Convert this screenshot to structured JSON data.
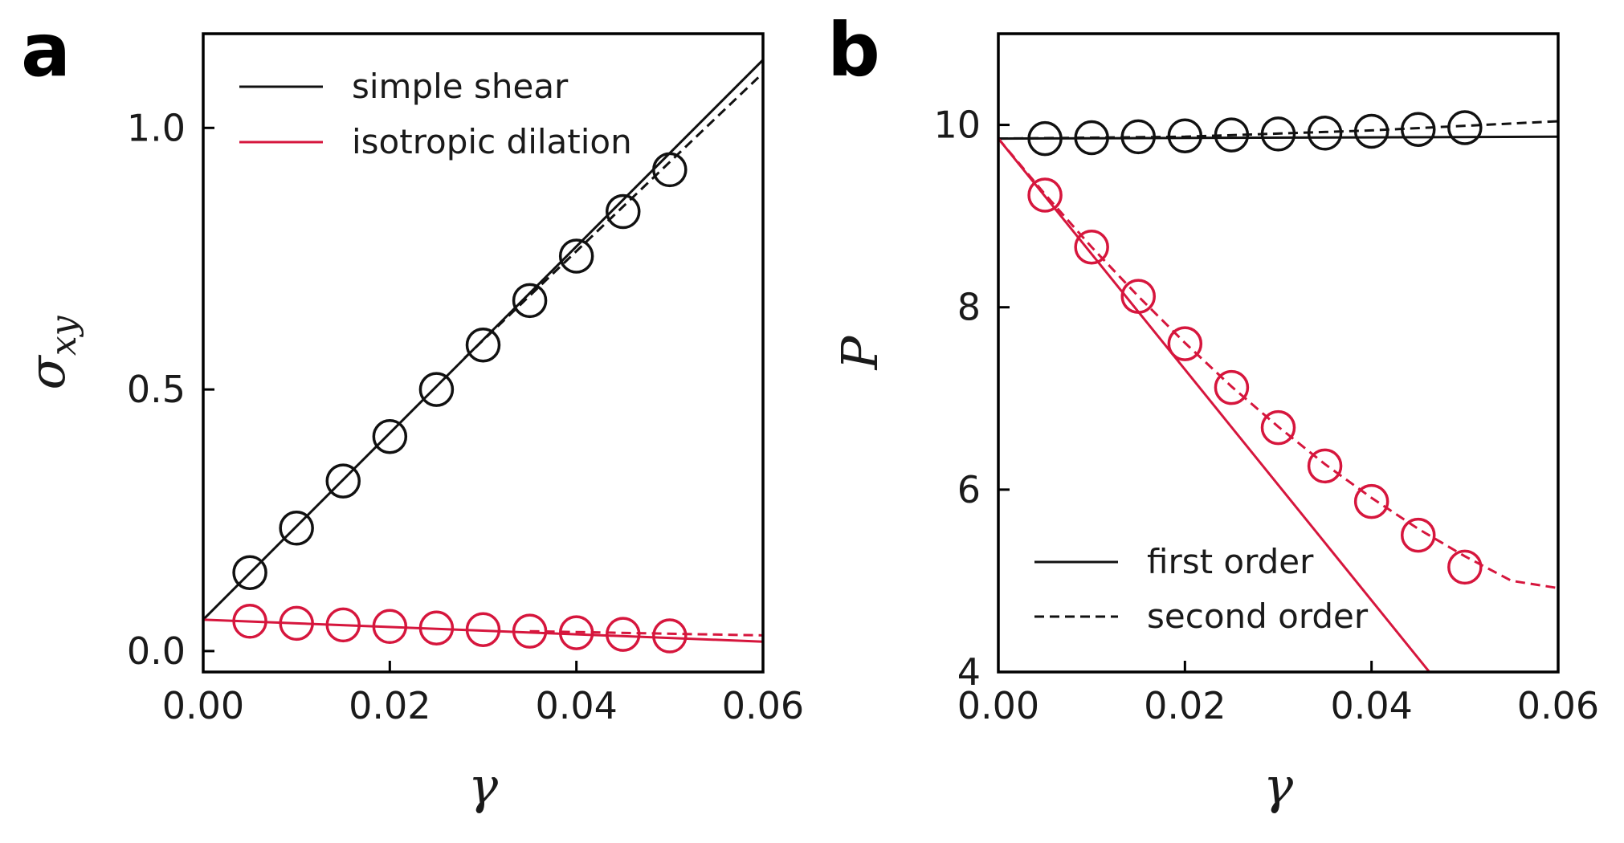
{
  "colors": {
    "black": "#111111",
    "red": "#d6163d"
  },
  "chart_data": [
    {
      "panel": "a",
      "type": "scatter",
      "xlabel": "γ",
      "ylabel_main": "σ",
      "ylabel_sub": "xy",
      "xlim": [
        0,
        0.06
      ],
      "ylim": [
        -0.04,
        1.18
      ],
      "xticks": [
        0,
        0.02,
        0.04,
        0.06
      ],
      "xtick_labels": [
        "0.00",
        "0.02",
        "0.04",
        "0.06"
      ],
      "yticks": [
        0,
        0.5,
        1.0
      ],
      "ytick_labels": [
        "0.0",
        "0.5",
        "1.0"
      ],
      "legend_position": "top-left",
      "legend": [
        {
          "label": "simple shear",
          "color": "#111111",
          "dash": "solid"
        },
        {
          "label": "isotropic dilation",
          "color": "#d6163d",
          "dash": "solid"
        }
      ],
      "series": [
        {
          "name": "simple shear data",
          "kind": "markers",
          "color": "#111111",
          "x": [
            0.005,
            0.01,
            0.015,
            0.02,
            0.025,
            0.03,
            0.035,
            0.04,
            0.045,
            0.05
          ],
          "y": [
            0.15,
            0.235,
            0.325,
            0.41,
            0.5,
            0.585,
            0.67,
            0.755,
            0.84,
            0.92
          ]
        },
        {
          "name": "simple shear first order",
          "kind": "line",
          "dash": "solid",
          "color": "#111111",
          "x": [
            0,
            0.06
          ],
          "y": [
            0.06,
            1.13
          ]
        },
        {
          "name": "simple shear second order",
          "kind": "line",
          "dash": "dashed",
          "color": "#111111",
          "x": [
            0.028,
            0.06
          ],
          "y": [
            0.56,
            1.105
          ]
        },
        {
          "name": "isotropic dilation data",
          "kind": "markers",
          "color": "#d6163d",
          "x": [
            0.005,
            0.01,
            0.015,
            0.02,
            0.025,
            0.03,
            0.035,
            0.04,
            0.045,
            0.05
          ],
          "y": [
            0.057,
            0.053,
            0.05,
            0.047,
            0.044,
            0.041,
            0.038,
            0.035,
            0.032,
            0.029
          ]
        },
        {
          "name": "isotropic dilation first order",
          "kind": "line",
          "dash": "solid",
          "color": "#d6163d",
          "x": [
            0,
            0.06
          ],
          "y": [
            0.06,
            0.018
          ]
        },
        {
          "name": "isotropic dilation second order",
          "kind": "line",
          "dash": "dashed",
          "color": "#d6163d",
          "x": [
            0.035,
            0.06
          ],
          "y": [
            0.038,
            0.03
          ]
        }
      ]
    },
    {
      "panel": "b",
      "type": "scatter",
      "xlabel": "γ",
      "ylabel_main": "P",
      "ylabel_sub": "",
      "xlim": [
        0,
        0.06
      ],
      "ylim": [
        4,
        11
      ],
      "xticks": [
        0,
        0.02,
        0.04,
        0.06
      ],
      "xtick_labels": [
        "0.00",
        "0.02",
        "0.04",
        "0.06"
      ],
      "yticks": [
        4,
        6,
        8,
        10
      ],
      "ytick_labels": [
        "4",
        "6",
        "8",
        "10"
      ],
      "legend_position": "bottom-left",
      "legend": [
        {
          "label": "first order",
          "color": "#111111",
          "dash": "solid"
        },
        {
          "label": "second order",
          "color": "#111111",
          "dash": "dashed"
        }
      ],
      "series": [
        {
          "name": "simple shear data",
          "kind": "markers",
          "color": "#111111",
          "x": [
            0.005,
            0.01,
            0.015,
            0.02,
            0.025,
            0.03,
            0.035,
            0.04,
            0.045,
            0.05
          ],
          "y": [
            9.85,
            9.86,
            9.87,
            9.88,
            9.89,
            9.9,
            9.91,
            9.93,
            9.95,
            9.97
          ]
        },
        {
          "name": "simple shear first order",
          "kind": "line",
          "dash": "solid",
          "color": "#111111",
          "x": [
            0,
            0.06
          ],
          "y": [
            9.85,
            9.87
          ]
        },
        {
          "name": "simple shear second order",
          "kind": "line",
          "dash": "dashed",
          "color": "#111111",
          "x": [
            0,
            0.02,
            0.04,
            0.06
          ],
          "y": [
            9.85,
            9.87,
            9.94,
            10.04
          ]
        },
        {
          "name": "isotropic dilation data",
          "kind": "markers",
          "color": "#d6163d",
          "x": [
            0.005,
            0.01,
            0.015,
            0.02,
            0.025,
            0.03,
            0.035,
            0.04,
            0.045,
            0.05
          ],
          "y": [
            9.23,
            8.66,
            8.12,
            7.6,
            7.12,
            6.68,
            6.26,
            5.87,
            5.5,
            5.15
          ]
        },
        {
          "name": "isotropic dilation first order",
          "kind": "line",
          "dash": "solid",
          "color": "#d6163d",
          "x": [
            0,
            0.0462
          ],
          "y": [
            9.85,
            4.0
          ]
        },
        {
          "name": "isotropic dilation second order",
          "kind": "line",
          "dash": "dashed",
          "color": "#d6163d",
          "x": [
            0,
            0.005,
            0.01,
            0.015,
            0.02,
            0.025,
            0.03,
            0.035,
            0.04,
            0.045,
            0.05,
            0.055,
            0.06
          ],
          "y": [
            9.85,
            9.24,
            8.66,
            8.12,
            7.61,
            7.13,
            6.69,
            6.28,
            5.91,
            5.57,
            5.27,
            5.0,
            4.92
          ]
        }
      ]
    }
  ]
}
